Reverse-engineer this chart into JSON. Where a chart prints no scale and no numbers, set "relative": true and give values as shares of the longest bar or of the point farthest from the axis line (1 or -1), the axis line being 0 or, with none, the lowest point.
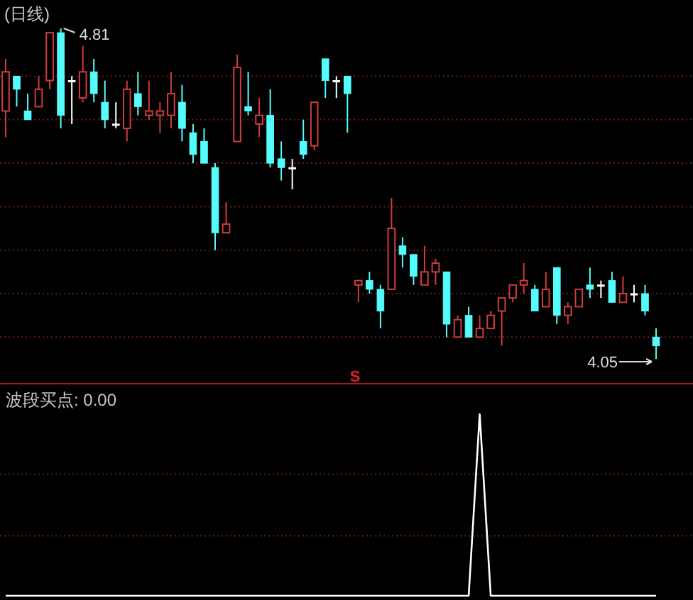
{
  "chart_data": [
    {
      "type": "candlestick",
      "title": "(日线)",
      "ref_lines": [
        {
          "axis": "y",
          "value": 4.7,
          "color": "#6a1c1c",
          "line_style": "dotted"
        },
        {
          "axis": "y",
          "value": 4.6,
          "color": "#6a1c1c",
          "line_style": "dotted"
        },
        {
          "axis": "y",
          "value": 4.5,
          "color": "#6a1c1c",
          "line_style": "dotted"
        },
        {
          "axis": "y",
          "value": 4.4,
          "color": "#6a1c1c",
          "line_style": "dotted"
        },
        {
          "axis": "y",
          "value": 4.3,
          "color": "#6a1c1c",
          "line_style": "dotted"
        },
        {
          "axis": "y",
          "value": 4.2,
          "color": "#6a1c1c",
          "line_style": "dotted"
        },
        {
          "axis": "y",
          "value": 4.1,
          "color": "#6a1c1c",
          "line_style": "dotted"
        }
      ],
      "categories": [
        null,
        null,
        null,
        null,
        null,
        null,
        null,
        null,
        null,
        null,
        null,
        null,
        null,
        null,
        null,
        null,
        null,
        null,
        null,
        null,
        null,
        null,
        null,
        null,
        null,
        null,
        null,
        null,
        null,
        null,
        null,
        null,
        null,
        null,
        null,
        null,
        null,
        null,
        null,
        null,
        null,
        null,
        null,
        null,
        null,
        null,
        null,
        null,
        null,
        null,
        null,
        null,
        null,
        null,
        null,
        null,
        null,
        null,
        null,
        null
      ],
      "ohlc": [
        [
          4.62,
          4.74,
          4.56,
          4.71
        ],
        [
          4.7,
          4.7,
          4.63,
          4.67
        ],
        [
          4.62,
          4.66,
          4.6,
          4.6
        ],
        [
          4.63,
          4.7,
          4.63,
          4.67
        ],
        [
          4.69,
          4.8,
          4.67,
          4.8
        ],
        [
          4.8,
          4.81,
          4.58,
          4.61
        ],
        [
          4.69,
          4.7,
          4.59,
          4.69
        ],
        [
          4.65,
          4.77,
          4.64,
          4.71
        ],
        [
          4.71,
          4.74,
          4.64,
          4.66
        ],
        [
          4.64,
          4.69,
          4.58,
          4.6
        ],
        [
          4.59,
          4.64,
          4.58,
          4.59
        ],
        [
          4.58,
          4.69,
          4.55,
          4.67
        ],
        [
          4.66,
          4.71,
          4.61,
          4.63
        ],
        [
          4.61,
          4.69,
          4.6,
          4.62
        ],
        [
          4.61,
          4.64,
          4.57,
          4.62
        ],
        [
          4.61,
          4.71,
          4.58,
          4.66
        ],
        [
          4.64,
          4.68,
          4.55,
          4.58
        ],
        [
          4.57,
          4.59,
          4.5,
          4.52
        ],
        [
          4.55,
          4.58,
          4.5,
          4.5
        ],
        [
          4.49,
          4.5,
          4.3,
          4.34
        ],
        [
          4.34,
          4.41,
          4.34,
          4.36
        ],
        [
          4.55,
          4.75,
          4.55,
          4.72
        ],
        [
          4.63,
          4.71,
          4.61,
          4.62
        ],
        [
          4.59,
          4.65,
          4.56,
          4.61
        ],
        [
          4.61,
          4.67,
          4.49,
          4.5
        ],
        [
          4.51,
          4.55,
          4.46,
          4.49
        ],
        [
          4.49,
          4.51,
          4.44,
          4.49
        ],
        [
          4.55,
          4.6,
          4.51,
          4.52
        ],
        [
          4.54,
          4.64,
          4.53,
          4.64
        ],
        [
          4.74,
          4.74,
          4.65,
          4.69
        ],
        [
          4.69,
          4.7,
          4.65,
          4.69
        ],
        [
          4.7,
          4.7,
          4.57,
          4.66
        ],
        [
          4.22,
          4.23,
          4.18,
          4.23
        ],
        [
          4.23,
          4.25,
          4.2,
          4.21
        ],
        [
          4.21,
          4.22,
          4.12,
          4.16
        ],
        [
          4.21,
          4.42,
          4.21,
          4.35
        ],
        [
          4.31,
          4.33,
          4.26,
          4.29
        ],
        [
          4.29,
          4.29,
          4.22,
          4.24
        ],
        [
          4.22,
          4.31,
          4.22,
          4.25
        ],
        [
          4.25,
          4.28,
          4.22,
          4.27
        ],
        [
          4.25,
          4.25,
          4.1,
          4.13
        ],
        [
          4.1,
          4.15,
          4.1,
          4.14
        ],
        [
          4.15,
          4.17,
          4.1,
          4.1
        ],
        [
          4.1,
          4.15,
          4.1,
          4.12
        ],
        [
          4.12,
          4.16,
          4.12,
          4.15
        ],
        [
          4.16,
          4.19,
          4.08,
          4.19
        ],
        [
          4.19,
          4.22,
          4.18,
          4.22
        ],
        [
          4.22,
          4.27,
          4.2,
          4.23
        ],
        [
          4.21,
          4.22,
          4.16,
          4.16
        ],
        [
          4.17,
          4.25,
          4.17,
          4.21
        ],
        [
          4.26,
          4.26,
          4.13,
          4.15
        ],
        [
          4.15,
          4.18,
          4.13,
          4.17
        ],
        [
          4.17,
          4.21,
          4.17,
          4.21
        ],
        [
          4.22,
          4.26,
          4.19,
          4.21
        ],
        [
          4.22,
          4.23,
          4.19,
          4.22
        ],
        [
          4.23,
          4.25,
          4.18,
          4.18
        ],
        [
          4.18,
          4.24,
          4.18,
          4.2
        ],
        [
          4.2,
          4.22,
          4.18,
          4.2
        ],
        [
          4.2,
          4.22,
          4.15,
          4.16
        ],
        [
          4.1,
          4.12,
          4.05,
          4.08
        ]
      ],
      "colors": [
        "#d03c3c",
        "#54fcfc",
        "#54fcfc",
        "#d03c3c",
        "#d03c3c",
        "#54fcfc",
        "#ffffff",
        "#d03c3c",
        "#54fcfc",
        "#54fcfc",
        "#ffffff",
        "#d03c3c",
        "#54fcfc",
        "#d03c3c",
        "#d03c3c",
        "#d03c3c",
        "#54fcfc",
        "#54fcfc",
        "#54fcfc",
        "#54fcfc",
        "#d03c3c",
        "#d03c3c",
        "#54fcfc",
        "#d03c3c",
        "#54fcfc",
        "#54fcfc",
        "#ffffff",
        "#54fcfc",
        "#d03c3c",
        "#54fcfc",
        "#ffffff",
        "#54fcfc",
        "#d03c3c",
        "#54fcfc",
        "#54fcfc",
        "#d03c3c",
        "#54fcfc",
        "#54fcfc",
        "#d03c3c",
        "#d03c3c",
        "#54fcfc",
        "#d03c3c",
        "#54fcfc",
        "#d03c3c",
        "#d03c3c",
        "#d03c3c",
        "#d03c3c",
        "#d03c3c",
        "#54fcfc",
        "#d03c3c",
        "#54fcfc",
        "#d03c3c",
        "#d03c3c",
        "#54fcfc",
        "#ffffff",
        "#54fcfc",
        "#d03c3c",
        "#ffffff",
        "#54fcfc",
        "#54fcfc"
      ],
      "annotations": [
        "4.81",
        "4.05",
        "S"
      ]
    },
    {
      "type": "line",
      "title": "波段买点: 0.00",
      "relative": true,
      "ref_lines": [
        {
          "axis": "y",
          "value": 0.67,
          "color": "#6a1c1c",
          "line_style": "dotted"
        },
        {
          "axis": "y",
          "value": 0.33,
          "color": "#6a1c1c",
          "line_style": "dotted"
        }
      ],
      "categories": [
        null,
        null,
        null,
        null,
        null,
        null,
        null,
        null,
        null,
        null,
        null,
        null,
        null,
        null,
        null,
        null,
        null,
        null,
        null,
        null,
        null,
        null,
        null,
        null,
        null,
        null,
        null,
        null,
        null,
        null,
        null,
        null,
        null,
        null,
        null,
        null,
        null,
        null,
        null,
        null,
        null,
        null,
        null,
        null,
        null,
        null,
        null,
        null,
        null,
        null,
        null,
        null,
        null,
        null,
        null,
        null,
        null,
        null,
        null,
        null
      ],
      "series": [
        {
          "color": "#ffffff",
          "values": [
            0,
            0,
            0,
            0,
            0,
            0,
            0,
            0,
            0,
            0,
            0,
            0,
            0,
            0,
            0,
            0,
            0,
            0,
            0,
            0,
            0,
            0,
            0,
            0,
            0,
            0,
            0,
            0,
            0,
            0,
            0,
            0,
            0,
            0,
            0,
            0,
            0,
            0,
            0,
            0,
            0,
            0,
            0,
            1,
            0,
            0,
            0,
            0,
            0,
            0,
            0,
            0,
            0,
            0,
            0,
            0,
            0,
            0,
            0,
            0
          ]
        }
      ]
    }
  ]
}
